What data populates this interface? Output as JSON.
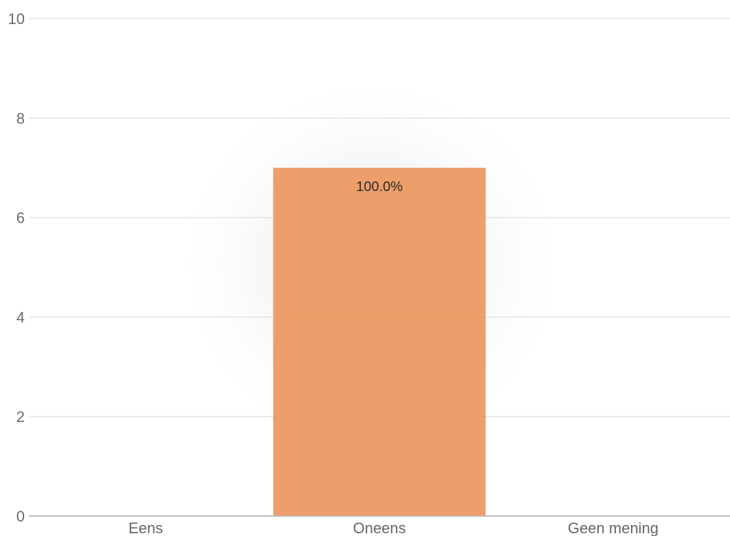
{
  "chart_data": {
    "type": "bar",
    "categories": [
      "Eens",
      "Oneens",
      "Geen mening"
    ],
    "values": [
      0,
      7,
      0
    ],
    "data_labels": [
      "",
      "100.0%",
      ""
    ],
    "ylim": [
      0,
      10
    ],
    "yticks": [
      0,
      2,
      4,
      6,
      8,
      10
    ],
    "grid": true,
    "bar_color": "#eb9a62",
    "title": "",
    "xlabel": "",
    "ylabel": ""
  }
}
